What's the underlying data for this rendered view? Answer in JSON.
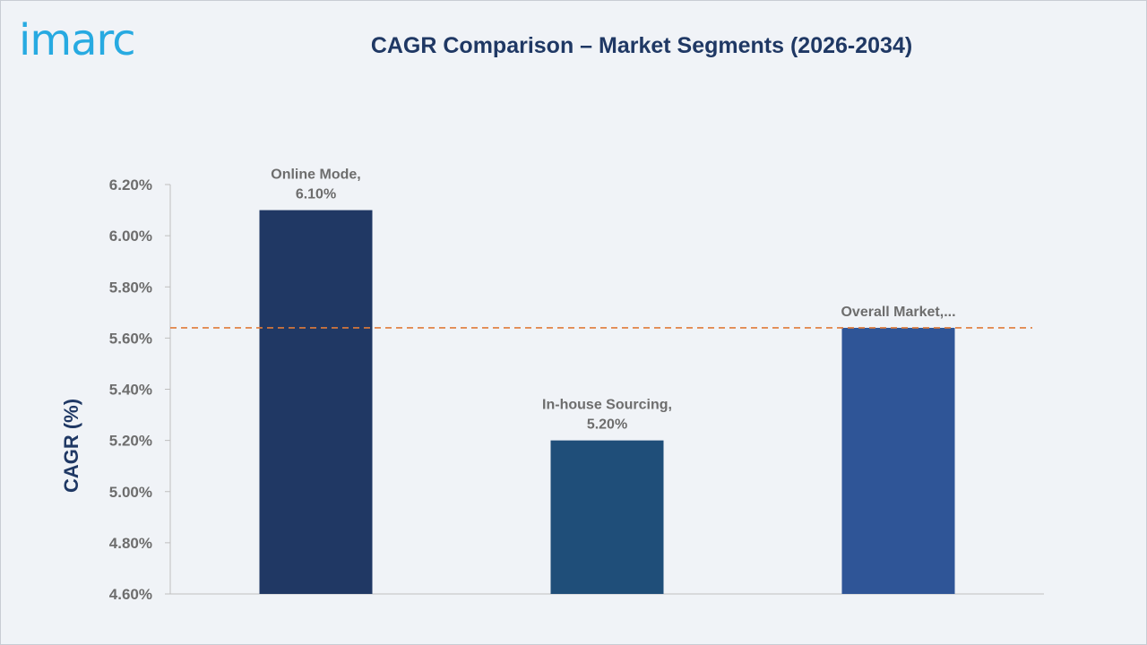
{
  "brand": {
    "logo_text": "imarc"
  },
  "chart_data": {
    "type": "bar",
    "title": "CAGR Comparison – Market Segments (2026-2034)",
    "xlabel": "",
    "ylabel": "CAGR (%)",
    "ylim": [
      4.6,
      6.2
    ],
    "yticks": [
      4.6,
      4.8,
      5.0,
      5.2,
      5.4,
      5.6,
      5.8,
      6.0,
      6.2
    ],
    "ytick_labels": [
      "4.60%",
      "4.80%",
      "5.00%",
      "5.20%",
      "5.40%",
      "5.60%",
      "5.80%",
      "6.00%",
      "6.20%"
    ],
    "categories": [
      "Online Mode",
      "In-house Sourcing",
      "Overall Market"
    ],
    "values": [
      6.1,
      5.2,
      5.64
    ],
    "data_labels": [
      [
        "Online Mode,",
        "6.10%"
      ],
      [
        "In-house Sourcing,",
        "5.20%"
      ],
      [
        "Overall Market,..."
      ]
    ],
    "bar_colors": [
      "#203864",
      "#1f4e79",
      "#2f5597"
    ],
    "reference_line": {
      "value": 5.64,
      "style": "dashed",
      "color": "#e07b39"
    },
    "grid": false,
    "legend": "none",
    "colors": {
      "title": "#1f3864",
      "ylabel": "#1f3864",
      "tick_labels": "#6d6d6d",
      "data_labels": "#6d6d6d",
      "axis_line": "#bfbfbf",
      "logo": "#27aae1"
    }
  }
}
